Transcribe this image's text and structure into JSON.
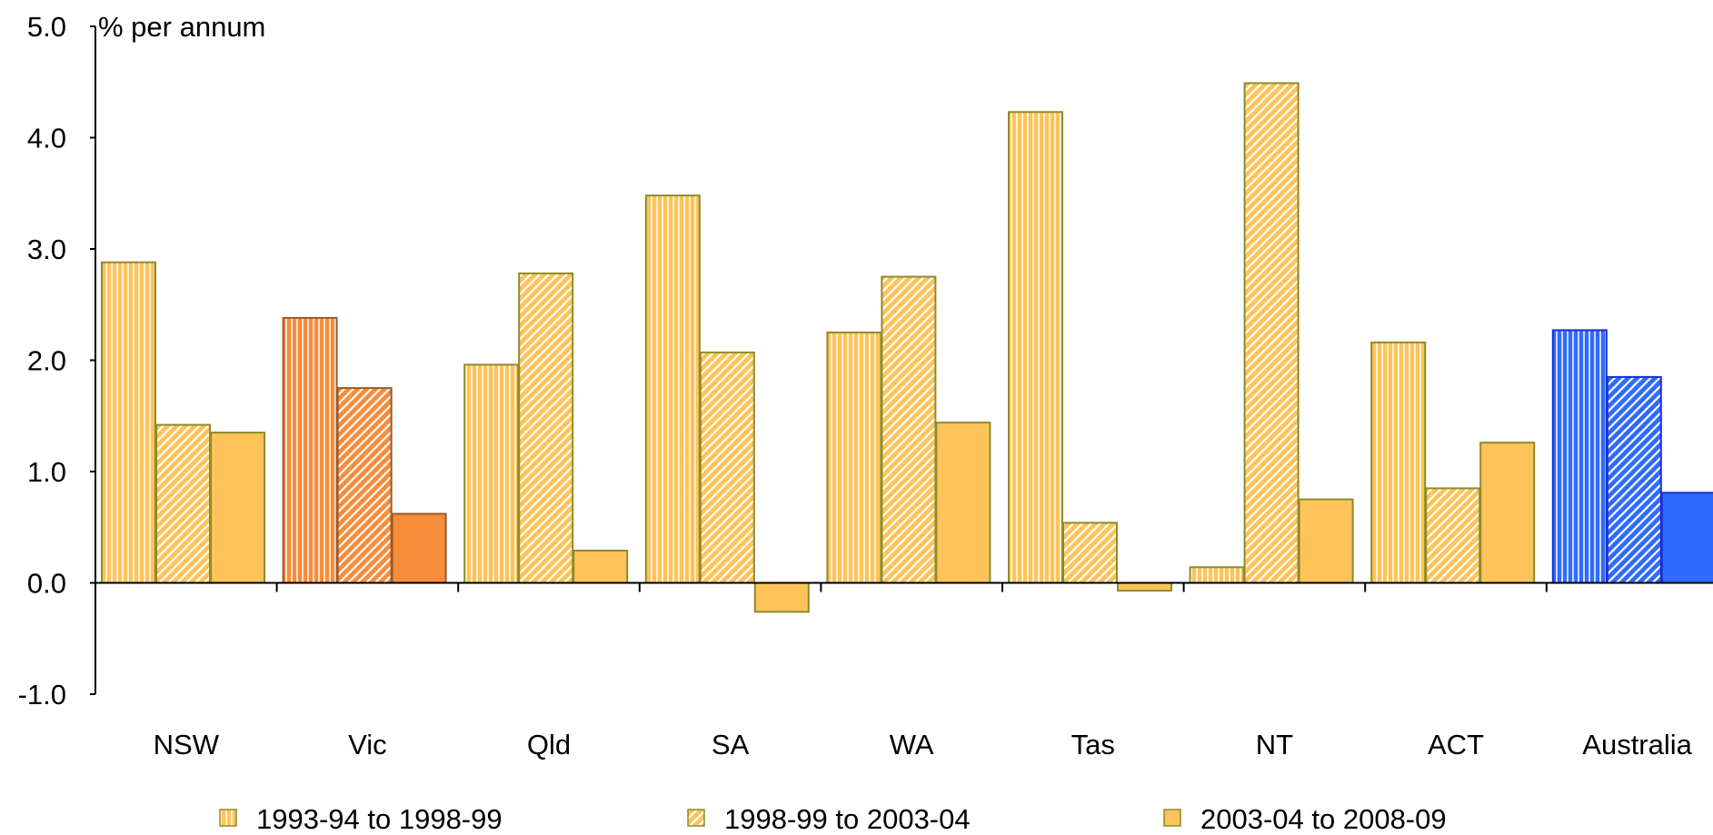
{
  "chart_data": {
    "type": "bar",
    "unit_label": "% per annum",
    "categories": [
      "NSW",
      "Vic",
      "Qld",
      "SA",
      "WA",
      "Tas",
      "NT",
      "ACT",
      "Australia"
    ],
    "series": [
      {
        "name": "1993-94 to 1998-99",
        "values": [
          2.88,
          2.38,
          1.96,
          3.48,
          2.25,
          4.23,
          0.14,
          2.16,
          2.27
        ]
      },
      {
        "name": "1998-99 to 2003-04",
        "values": [
          1.42,
          1.75,
          2.78,
          2.07,
          2.75,
          0.54,
          4.49,
          0.85,
          1.85
        ]
      },
      {
        "name": "2003-04 to 2008-09",
        "values": [
          1.35,
          0.62,
          0.29,
          -0.26,
          1.44,
          -0.07,
          0.75,
          1.26,
          0.81
        ]
      }
    ],
    "ylim": [
      -1.0,
      5.0
    ],
    "yticks": [
      "-1.0",
      "0.0",
      "1.0",
      "2.0",
      "3.0",
      "4.0",
      "5.0"
    ],
    "grid": false,
    "legend_position": "bottom",
    "colors": {
      "default_fill": "#FFC35A",
      "default_border": "#8C8C28",
      "vic_fill": "#F78C3A",
      "vic_border": "#9A5A2A",
      "australia_fill": "#2F6BFF",
      "australia_border": "#1A2FD0",
      "axis": "#000000"
    }
  }
}
